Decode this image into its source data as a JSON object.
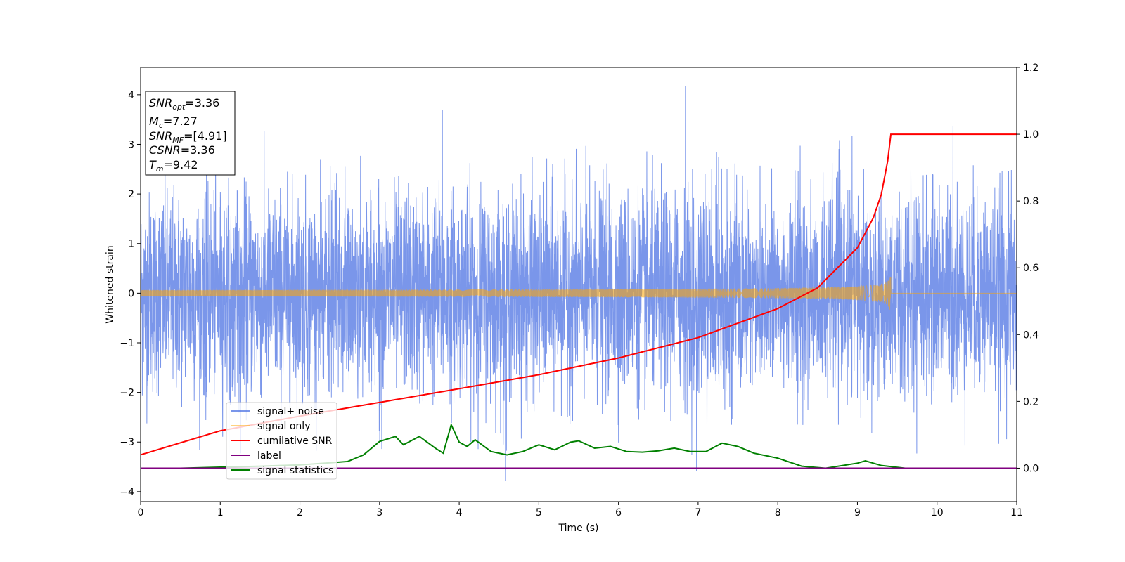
{
  "chart_data": {
    "type": "line",
    "xlabel": "Time (s)",
    "ylabel": "Whitened strain",
    "xlim": [
      0,
      11
    ],
    "ylim": [
      -4.2,
      4.55
    ],
    "ylim_right": [
      -0.1,
      1.2
    ],
    "x_ticks": [
      0,
      1,
      2,
      3,
      4,
      5,
      6,
      7,
      8,
      9,
      10,
      11
    ],
    "y_ticks": [
      -4,
      -3,
      -2,
      -1,
      0,
      1,
      2,
      3,
      4
    ],
    "y_ticks_right": [
      0.0,
      0.2,
      0.4,
      0.6,
      0.8,
      1.0,
      1.2
    ],
    "legend_position": "lower-left",
    "info_box": {
      "snr_opt": "=3.36",
      "mc": "=7.27",
      "snr_mf": "=[4.91]",
      "csnr": "=3.36",
      "tm": "=9.42"
    },
    "series": [
      {
        "name": "signal+ noise",
        "color": "#4169e1",
        "axis": "left",
        "noise_std": 1.0,
        "peak_values": [
          [
            6.84,
            4.17
          ],
          [
            4.58,
            -3.78
          ],
          [
            3.79,
            3.7
          ],
          [
            10.2,
            3.36
          ],
          [
            6.98,
            -3.58
          ]
        ]
      },
      {
        "name": "signal only",
        "color": "#ffa500",
        "axis": "left",
        "chirp_end": 9.42,
        "peak_amplitude": 0.45
      },
      {
        "name": "cumilative SNR",
        "color": "#ff0000",
        "axis": "right",
        "x": [
          0,
          1,
          2,
          3,
          4,
          5,
          6,
          7,
          8,
          8.5,
          9,
          9.2,
          9.3,
          9.38,
          9.42,
          11
        ],
        "values": [
          0.04,
          0.112,
          0.156,
          0.197,
          0.238,
          0.28,
          0.33,
          0.391,
          0.478,
          0.54,
          0.66,
          0.75,
          0.82,
          0.92,
          1.0,
          1.0
        ]
      },
      {
        "name": "label",
        "color": "#800080",
        "axis": "right",
        "x": [
          0,
          11
        ],
        "values": [
          0.0,
          0.0
        ]
      },
      {
        "name": "signal statistics",
        "color": "#008000",
        "axis": "right",
        "x": [
          0,
          0.5,
          1,
          1.5,
          2,
          2.3,
          2.6,
          2.8,
          3.0,
          3.2,
          3.3,
          3.5,
          3.7,
          3.8,
          3.9,
          4.0,
          4.1,
          4.2,
          4.4,
          4.6,
          4.8,
          5.0,
          5.2,
          5.4,
          5.5,
          5.7,
          5.9,
          6.1,
          6.3,
          6.5,
          6.7,
          6.9,
          7.1,
          7.3,
          7.5,
          7.7,
          7.9,
          8.0,
          8.3,
          8.6,
          9.0,
          9.1,
          9.3,
          9.6,
          10,
          10.5,
          11
        ],
        "values": [
          0.0,
          0.0,
          0.003,
          0.006,
          0.01,
          0.015,
          0.02,
          0.04,
          0.08,
          0.095,
          0.07,
          0.095,
          0.06,
          0.045,
          0.13,
          0.078,
          0.065,
          0.085,
          0.05,
          0.04,
          0.05,
          0.07,
          0.055,
          0.078,
          0.082,
          0.06,
          0.065,
          0.05,
          0.048,
          0.052,
          0.06,
          0.05,
          0.05,
          0.075,
          0.065,
          0.045,
          0.035,
          0.03,
          0.006,
          0.0,
          0.015,
          0.022,
          0.008,
          0.0,
          0.0,
          0.0,
          0.0
        ]
      }
    ]
  }
}
